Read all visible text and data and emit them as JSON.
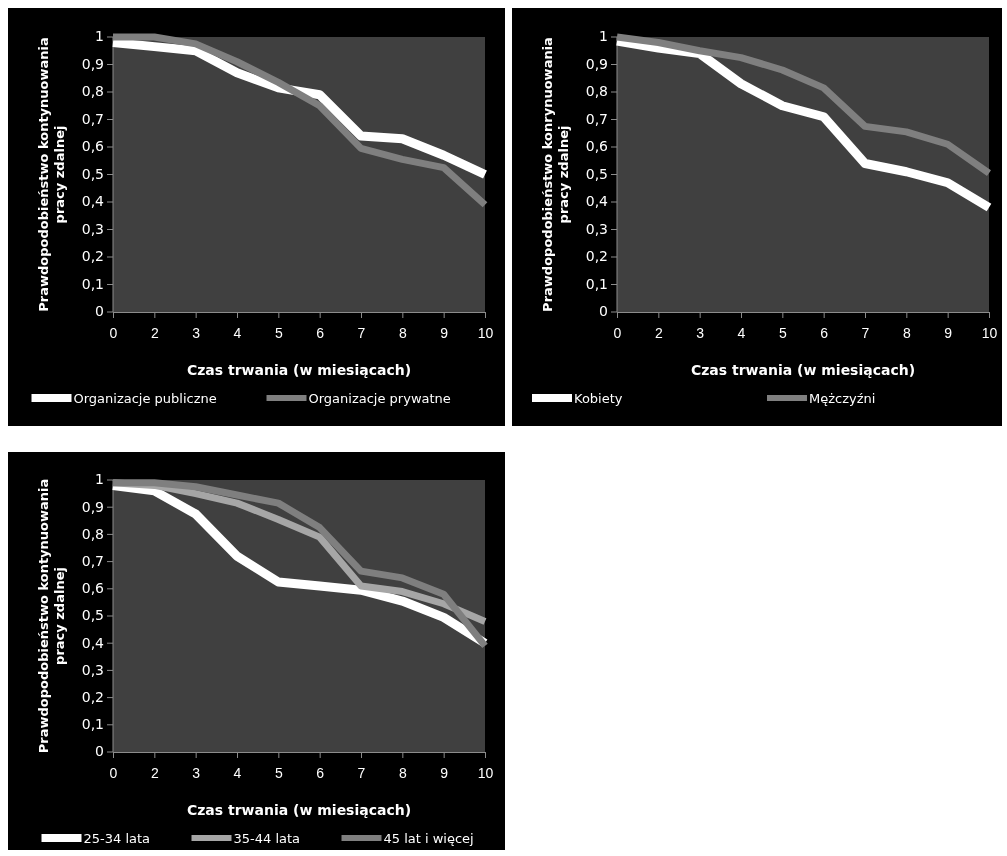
{
  "chart_data": [
    {
      "type": "line",
      "xlabel": "Czas trwania (w miesiącach)",
      "ylabel": "Prawdopodobieństwo kontynuowania pracy zdalnej",
      "categories": [
        "0",
        "2",
        "3",
        "4",
        "5",
        "6",
        "7",
        "8",
        "9",
        "10"
      ],
      "ylim": [
        0,
        1
      ],
      "yticks": [
        {
          "value": 0,
          "label": "0"
        },
        {
          "value": 0.1,
          "label": "0,1"
        },
        {
          "value": 0.2,
          "label": "0,2"
        },
        {
          "value": 0.3,
          "label": "0,3"
        },
        {
          "value": 0.4,
          "label": "0,4"
        },
        {
          "value": 0.5,
          "label": "0,5"
        },
        {
          "value": 0.6,
          "label": "0,6"
        },
        {
          "value": 0.7,
          "label": "0,7"
        },
        {
          "value": 0.8,
          "label": "0,8"
        },
        {
          "value": 0.9,
          "label": "0,9"
        },
        {
          "value": 1,
          "label": "1"
        }
      ],
      "grid": false,
      "legend": "bottom",
      "series": [
        {
          "name": "Organizacje publiczne",
          "color": "#ffffff",
          "values": [
            0.98,
            0.965,
            0.95,
            0.87,
            0.815,
            0.79,
            0.64,
            0.63,
            0.57,
            0.5
          ]
        },
        {
          "name": "Organizacje prywatne",
          "color": "#7f7f7f",
          "values": [
            1.0,
            1.0,
            0.975,
            0.91,
            0.835,
            0.75,
            0.595,
            0.555,
            0.525,
            0.39
          ]
        }
      ]
    },
    {
      "type": "line",
      "xlabel": "Czas trwania (w miesiącach)",
      "ylabel": "Prawdopodobieństwo konrynuowania pracy zdalnej",
      "categories": [
        "0",
        "2",
        "3",
        "4",
        "5",
        "6",
        "7",
        "8",
        "9",
        "10"
      ],
      "ylim": [
        0,
        1
      ],
      "yticks": [
        {
          "value": 0,
          "label": "0"
        },
        {
          "value": 0.1,
          "label": "0,1"
        },
        {
          "value": 0.2,
          "label": "0,2"
        },
        {
          "value": 0.3,
          "label": "0,3"
        },
        {
          "value": 0.4,
          "label": "0,4"
        },
        {
          "value": 0.5,
          "label": "0,5"
        },
        {
          "value": 0.6,
          "label": "0,6"
        },
        {
          "value": 0.7,
          "label": "0,7"
        },
        {
          "value": 0.8,
          "label": "0,8"
        },
        {
          "value": 0.9,
          "label": "0,9"
        },
        {
          "value": 1,
          "label": "1"
        }
      ],
      "grid": false,
      "legend": "bottom",
      "series": [
        {
          "name": "Kobiety",
          "color": "#ffffff",
          "values": [
            0.985,
            0.96,
            0.94,
            0.83,
            0.75,
            0.71,
            0.54,
            0.51,
            0.47,
            0.38
          ]
        },
        {
          "name": "Mężczyźni",
          "color": "#7f7f7f",
          "values": [
            1.0,
            0.98,
            0.95,
            0.925,
            0.88,
            0.815,
            0.675,
            0.655,
            0.61,
            0.505
          ]
        }
      ]
    },
    {
      "type": "line",
      "xlabel": "Czas trwania (w miesiącach)",
      "ylabel": "Prawdopodobieństwo kontynuowania pracy zdalnej",
      "categories": [
        "0",
        "2",
        "3",
        "4",
        "5",
        "6",
        "7",
        "8",
        "9",
        "10"
      ],
      "ylim": [
        0,
        1
      ],
      "yticks": [
        {
          "value": 0,
          "label": "0"
        },
        {
          "value": 0.1,
          "label": "0,1"
        },
        {
          "value": 0.2,
          "label": "0,2"
        },
        {
          "value": 0.3,
          "label": "0,3"
        },
        {
          "value": 0.4,
          "label": "0,4"
        },
        {
          "value": 0.5,
          "label": "0,5"
        },
        {
          "value": 0.6,
          "label": "0,6"
        },
        {
          "value": 0.7,
          "label": "0,7"
        },
        {
          "value": 0.8,
          "label": "0,8"
        },
        {
          "value": 0.9,
          "label": "0,9"
        },
        {
          "value": 1,
          "label": "1"
        }
      ],
      "grid": false,
      "legend": "bottom",
      "series": [
        {
          "name": "25-34 lata",
          "color": "#ffffff",
          "values": [
            0.98,
            0.96,
            0.875,
            0.72,
            0.625,
            0.61,
            0.595,
            0.555,
            0.495,
            0.4
          ]
        },
        {
          "name": "35-44 lata",
          "color": "#a6a6a6",
          "values": [
            0.99,
            0.98,
            0.95,
            0.915,
            0.855,
            0.79,
            0.61,
            0.59,
            0.545,
            0.48
          ]
        },
        {
          "name": "45 lat i więcej",
          "color": "#7f7f7f",
          "values": [
            0.99,
            0.99,
            0.975,
            0.945,
            0.915,
            0.825,
            0.665,
            0.64,
            0.58,
            0.39
          ]
        }
      ]
    }
  ]
}
